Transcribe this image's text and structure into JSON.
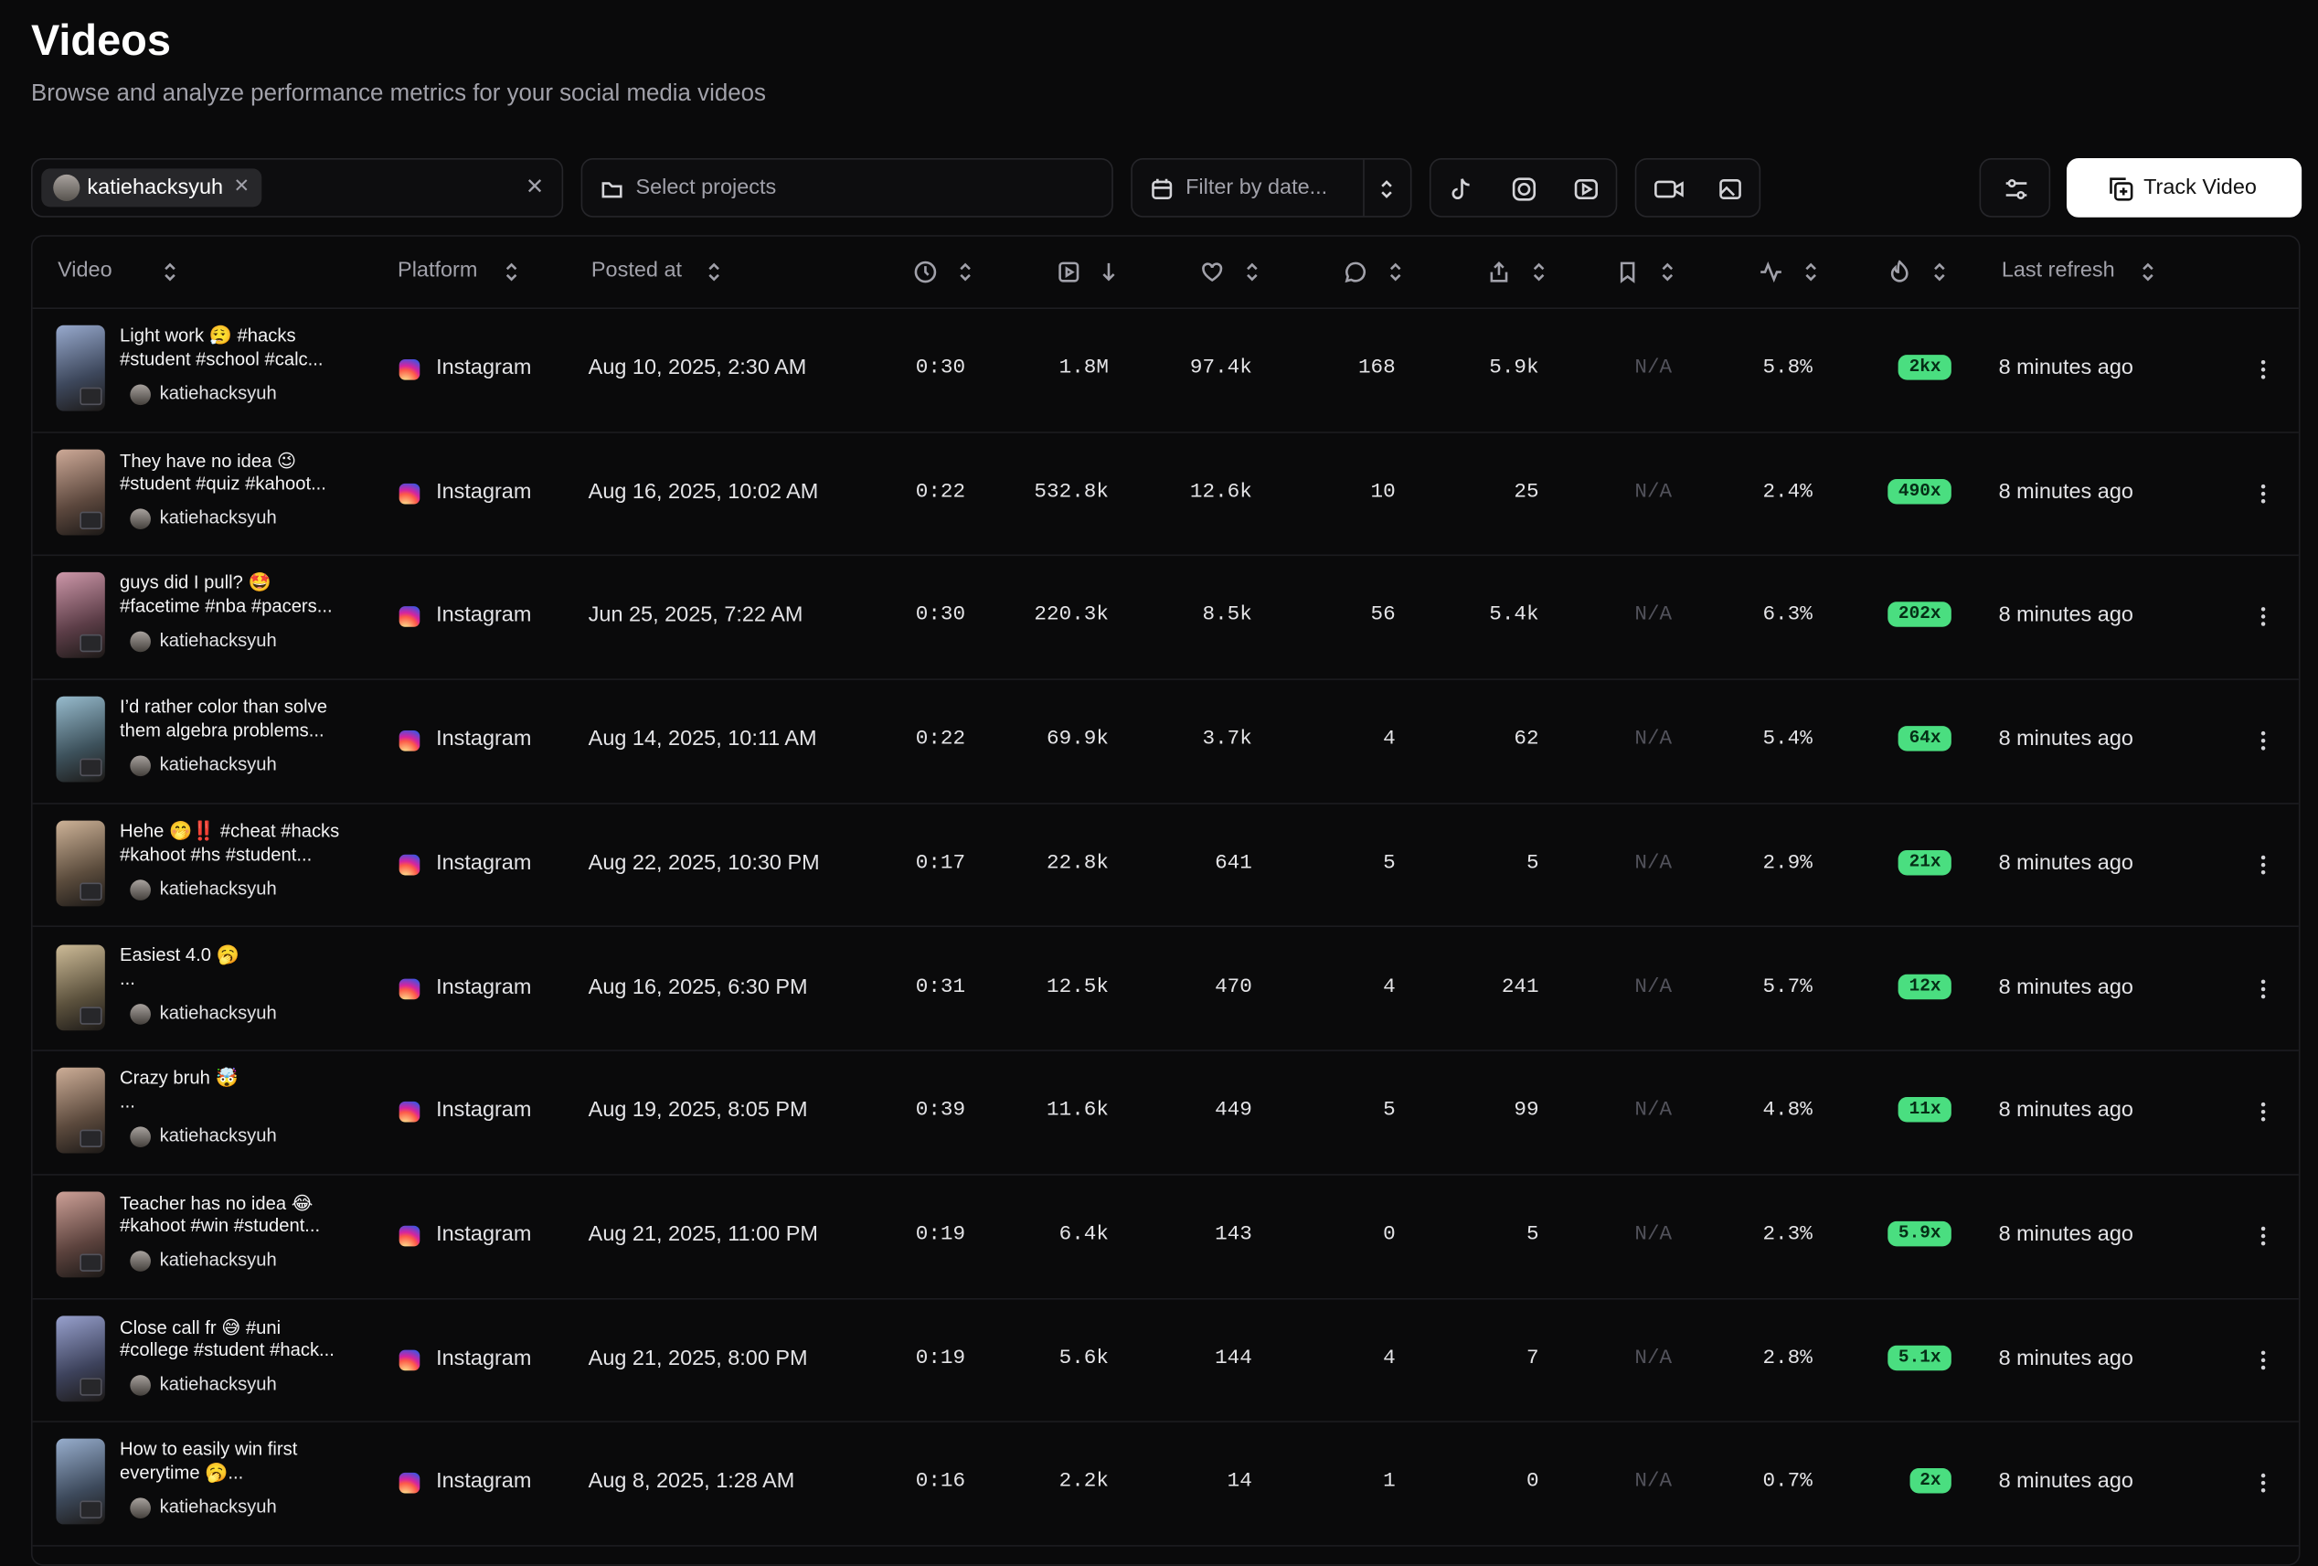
{
  "header": {
    "title": "Videos",
    "subtitle": "Browse and analyze performance metrics for your social media videos"
  },
  "filters": {
    "account": "katiehacksyuh",
    "projects": "Select projects",
    "date": "Filter by date...",
    "track": "Track Video"
  },
  "columns": {
    "video": "Video",
    "platform": "Platform",
    "posted": "Posted at",
    "refresh": "Last refresh"
  },
  "rows": [
    {
      "title": [
        "Light work 😮‍💨 #hacks",
        "#student #school #calc..."
      ],
      "user": "katiehacksyuh",
      "platform": "Instagram",
      "posted": "Aug 10, 2025, 2:30 AM",
      "duration": "0:30",
      "views": "1.8M",
      "likes": "97.4k",
      "comments": "168",
      "shares": "5.9k",
      "saves": "N/A",
      "engagement": "5.8%",
      "multiplier": "2kx",
      "refreshed": "8 minutes ago"
    },
    {
      "title": [
        "They have no idea 😉",
        "#student #quiz #kahoot..."
      ],
      "user": "katiehacksyuh",
      "platform": "Instagram",
      "posted": "Aug 16, 2025, 10:02 AM",
      "duration": "0:22",
      "views": "532.8k",
      "likes": "12.6k",
      "comments": "10",
      "shares": "25",
      "saves": "N/A",
      "engagement": "2.4%",
      "multiplier": "490x",
      "refreshed": "8 minutes ago"
    },
    {
      "title": [
        "guys did I pull? 🤩",
        "#facetime #nba #pacers..."
      ],
      "user": "katiehacksyuh",
      "platform": "Instagram",
      "posted": "Jun 25, 2025, 7:22 AM",
      "duration": "0:30",
      "views": "220.3k",
      "likes": "8.5k",
      "comments": "56",
      "shares": "5.4k",
      "saves": "N/A",
      "engagement": "6.3%",
      "multiplier": "202x",
      "refreshed": "8 minutes ago"
    },
    {
      "title": [
        "I’d rather color than solve",
        "them algebra problems..."
      ],
      "user": "katiehacksyuh",
      "platform": "Instagram",
      "posted": "Aug 14, 2025, 10:11 AM",
      "duration": "0:22",
      "views": "69.9k",
      "likes": "3.7k",
      "comments": "4",
      "shares": "62",
      "saves": "N/A",
      "engagement": "5.4%",
      "multiplier": "64x",
      "refreshed": "8 minutes ago"
    },
    {
      "title": [
        "Hehe 🤭‼️ #cheat #hacks",
        "#kahoot #hs #student..."
      ],
      "user": "katiehacksyuh",
      "platform": "Instagram",
      "posted": "Aug 22, 2025, 10:30 PM",
      "duration": "0:17",
      "views": "22.8k",
      "likes": "641",
      "comments": "5",
      "shares": "5",
      "saves": "N/A",
      "engagement": "2.9%",
      "multiplier": "21x",
      "refreshed": "8 minutes ago"
    },
    {
      "title": [
        "Easiest 4.0 🥱",
        "..."
      ],
      "user": "katiehacksyuh",
      "platform": "Instagram",
      "posted": "Aug 16, 2025, 6:30 PM",
      "duration": "0:31",
      "views": "12.5k",
      "likes": "470",
      "comments": "4",
      "shares": "241",
      "saves": "N/A",
      "engagement": "5.7%",
      "multiplier": "12x",
      "refreshed": "8 minutes ago"
    },
    {
      "title": [
        "Crazy bruh 🤯",
        "..."
      ],
      "user": "katiehacksyuh",
      "platform": "Instagram",
      "posted": "Aug 19, 2025, 8:05 PM",
      "duration": "0:39",
      "views": "11.6k",
      "likes": "449",
      "comments": "5",
      "shares": "99",
      "saves": "N/A",
      "engagement": "4.8%",
      "multiplier": "11x",
      "refreshed": "8 minutes ago"
    },
    {
      "title": [
        "Teacher has no idea 😂",
        "#kahoot #win #student..."
      ],
      "user": "katiehacksyuh",
      "platform": "Instagram",
      "posted": "Aug 21, 2025, 11:00 PM",
      "duration": "0:19",
      "views": "6.4k",
      "likes": "143",
      "comments": "0",
      "shares": "5",
      "saves": "N/A",
      "engagement": "2.3%",
      "multiplier": "5.9x",
      "refreshed": "8 minutes ago"
    },
    {
      "title": [
        "Close call fr 😅 #uni",
        "#college #student #hack..."
      ],
      "user": "katiehacksyuh",
      "platform": "Instagram",
      "posted": "Aug 21, 2025, 8:00 PM",
      "duration": "0:19",
      "views": "5.6k",
      "likes": "144",
      "comments": "4",
      "shares": "7",
      "saves": "N/A",
      "engagement": "2.8%",
      "multiplier": "5.1x",
      "refreshed": "8 minutes ago"
    },
    {
      "title": [
        "How to easily win first",
        "everytime 🥱..."
      ],
      "user": "katiehacksyuh",
      "platform": "Instagram",
      "posted": "Aug 8, 2025, 1:28 AM",
      "duration": "0:16",
      "views": "2.2k",
      "likes": "14",
      "comments": "1",
      "shares": "0",
      "saves": "N/A",
      "engagement": "0.7%",
      "multiplier": "2x",
      "refreshed": "8 minutes ago"
    }
  ]
}
